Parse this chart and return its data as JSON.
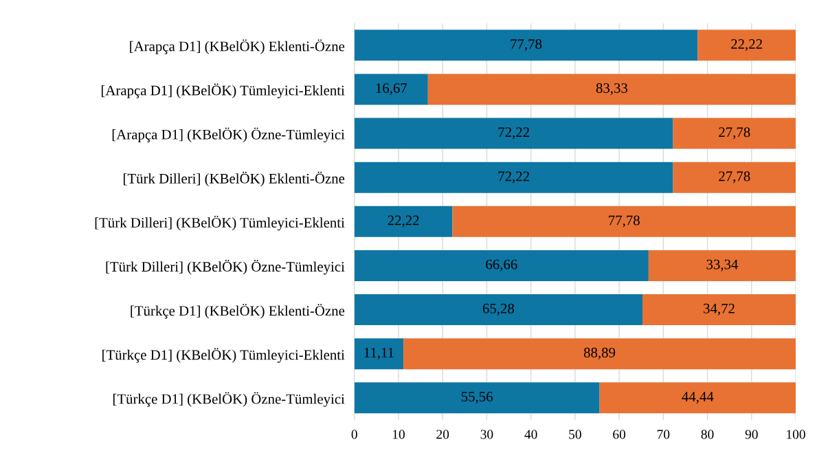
{
  "chart_data": {
    "type": "bar",
    "orientation": "horizontal",
    "stacked": true,
    "categories": [
      "[Arapça D1] (KBelÖK) Eklenti-Özne",
      "[Arapça D1] (KBelÖK) Tümleyici-Eklenti",
      "[Arapça D1] (KBelÖK) Özne-Tümleyici",
      "[Türk Dilleri] (KBelÖK) Eklenti-Özne",
      "[Türk Dilleri] (KBelÖK) Tümleyici-Eklenti",
      "[Türk Dilleri] (KBelÖK) Özne-Tümleyici",
      "[Türkçe D1] (KBelÖK) Eklenti-Özne",
      "[Türkçe D1] (KBelÖK) Tümleyici-Eklenti",
      "[Türkçe D1] (KBelÖK) Özne-Tümleyici"
    ],
    "series": [
      {
        "color": "#0e76a3",
        "values": [
          77.78,
          16.67,
          72.22,
          72.22,
          22.22,
          66.66,
          65.28,
          11.11,
          55.56
        ],
        "value_labels": [
          "77,78",
          "16,67",
          "72,22",
          "72,22",
          "22,22",
          "66,66",
          "65,28",
          "11,11",
          "55,56"
        ]
      },
      {
        "color": "#e87233",
        "values": [
          22.22,
          83.33,
          27.78,
          27.78,
          77.78,
          33.34,
          34.72,
          88.89,
          44.44
        ],
        "value_labels": [
          "22,22",
          "83,33",
          "27,78",
          "27,78",
          "77,78",
          "33,34",
          "34,72",
          "88,89",
          "44,44"
        ]
      }
    ],
    "xlim": [
      0,
      100
    ],
    "xticks": [
      0,
      10,
      20,
      30,
      40,
      50,
      60,
      70,
      80,
      90,
      100
    ],
    "grid": "x"
  }
}
